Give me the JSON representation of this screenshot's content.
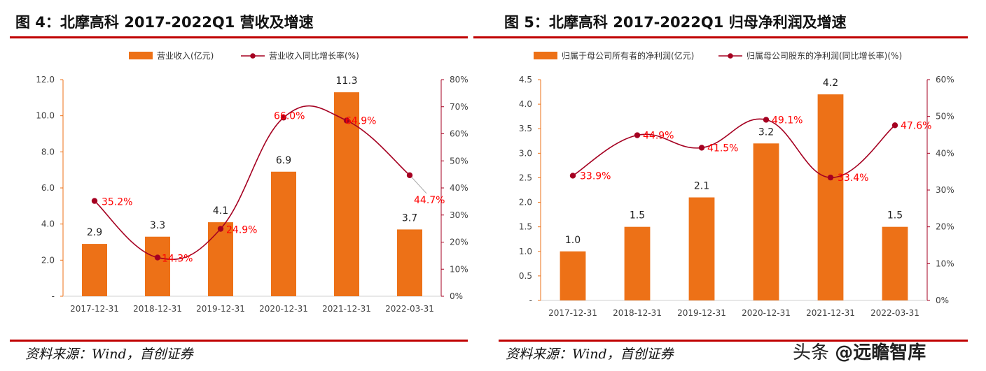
{
  "left": {
    "fig_title": "图 4：北摩高科 2017-2022Q1 营收及增速",
    "source": "资料来源：Wind，首创证券"
  },
  "right": {
    "fig_title": "图 5：北摩高科 2017-2022Q1 归母净利润及增速",
    "source": "资料来源：Wind，首创证券"
  },
  "watermark": {
    "prefix": "头条 ",
    "brand": "@远瞻智库"
  },
  "colors": {
    "bar": "#ED7117",
    "line": "#A50021",
    "line_label": "#FF0000",
    "rule": "#C00000"
  },
  "chart_data": [
    {
      "type": "bar",
      "title": "",
      "categories": [
        "2017-12-31",
        "2018-12-31",
        "2019-12-31",
        "2020-12-31",
        "2021-12-31",
        "2022-03-31"
      ],
      "series": [
        {
          "name": "营业收入(亿元)",
          "kind": "bar",
          "axis": "left",
          "values": [
            2.9,
            3.3,
            4.1,
            6.9,
            11.3,
            3.7
          ],
          "labels": [
            "2.9",
            "3.3",
            "4.1",
            "6.9",
            "11.3",
            "3.7"
          ]
        },
        {
          "name": "营业收入同比增长率(%)",
          "kind": "line",
          "axis": "right",
          "values": [
            35.2,
            14.3,
            24.9,
            66.0,
            64.9,
            44.7
          ],
          "labels": [
            "35.2%",
            "14.3%",
            "24.9%",
            "66.0%",
            "64.9%",
            "44.7%"
          ]
        }
      ],
      "ylim": [
        0,
        12
      ],
      "y_ticks": [
        "-",
        "2.0",
        "4.0",
        "6.0",
        "8.0",
        "10.0",
        "12.0"
      ],
      "y2lim": [
        0,
        80
      ],
      "y2_ticks": [
        "0%",
        "10%",
        "20%",
        "30%",
        "40%",
        "50%",
        "60%",
        "70%",
        "80%"
      ],
      "legend": "top"
    },
    {
      "type": "bar",
      "title": "",
      "categories": [
        "2017-12-31",
        "2018-12-31",
        "2019-12-31",
        "2020-12-31",
        "2021-12-31",
        "2022-03-31"
      ],
      "series": [
        {
          "name": "归属于母公司所有者的净利润(亿元)",
          "kind": "bar",
          "axis": "left",
          "values": [
            1.0,
            1.5,
            2.1,
            3.2,
            4.2,
            1.5
          ],
          "labels": [
            "1.0",
            "1.5",
            "2.1",
            "3.2",
            "4.2",
            "1.5"
          ]
        },
        {
          "name": "归属母公司股东的净利润(同比增长率)(%)",
          "kind": "line",
          "axis": "right",
          "values": [
            33.9,
            44.9,
            41.5,
            49.1,
            33.4,
            47.6
          ],
          "labels": [
            "33.9%",
            "44.9%",
            "41.5%",
            "49.1%",
            "33.4%",
            "47.6%"
          ]
        }
      ],
      "ylim": [
        0,
        4.5
      ],
      "y_ticks": [
        "-",
        "0.5",
        "1.0",
        "1.5",
        "2.0",
        "2.5",
        "3.0",
        "3.5",
        "4.0",
        "4.5"
      ],
      "y2lim": [
        0,
        60
      ],
      "y2_ticks": [
        "0%",
        "10%",
        "20%",
        "30%",
        "40%",
        "50%",
        "60%"
      ],
      "legend": "top"
    }
  ]
}
